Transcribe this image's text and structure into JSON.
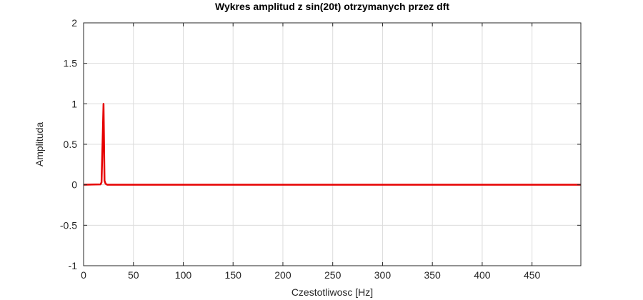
{
  "chart_data": {
    "type": "line",
    "title": "Wykres amplitud z sin(20t) otrzymanych przez dft",
    "xlabel": "Czestotliwosc [Hz]",
    "ylabel": "Amplituda",
    "xlim": [
      0,
      499
    ],
    "ylim": [
      -1,
      2
    ],
    "xticks": [
      0,
      50,
      100,
      150,
      200,
      250,
      300,
      350,
      400,
      450
    ],
    "yticks": [
      -1,
      -0.5,
      0,
      0.5,
      1,
      1.5,
      2
    ],
    "grid": true,
    "colors": {
      "line": "#e60000",
      "grid": "#dcdcdc",
      "axis": "#262626"
    },
    "series": [
      {
        "x": [
          0,
          17,
          18,
          19,
          20,
          21,
          22,
          23,
          24,
          499
        ],
        "y": [
          0,
          0.005,
          0.03,
          0.5,
          1.0,
          0.05,
          0.015,
          0.005,
          0,
          0
        ]
      }
    ]
  }
}
